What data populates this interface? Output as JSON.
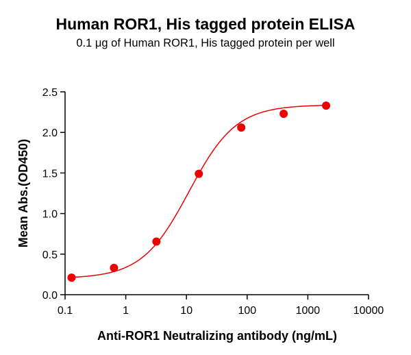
{
  "chart_data": {
    "type": "scatter",
    "title": "Human ROR1, His tagged protein ELISA",
    "subtitle": "0.1 μg of Human ROR1, His tagged protein per well",
    "xlabel": "Anti-ROR1 Neutralizing antibody (ng/mL)",
    "ylabel": "Mean Abs.(OD450)",
    "xscale": "log",
    "xlim": [
      0.1,
      10000
    ],
    "ylim": [
      0,
      2.5
    ],
    "xticks": [
      "0.1",
      "1",
      "10",
      "100",
      "1000",
      "10000"
    ],
    "yticks": [
      "0.0",
      "0.5",
      "1.0",
      "1.5",
      "2.0",
      "2.5"
    ],
    "grid": false,
    "color": "#ee0000",
    "fit": "sigmoidal curve",
    "series": [
      {
        "x": [
          0.128,
          0.64,
          3.2,
          16,
          80,
          400,
          2000
        ],
        "y": [
          0.21,
          0.33,
          0.655,
          1.49,
          2.06,
          2.23,
          2.33
        ]
      }
    ]
  }
}
